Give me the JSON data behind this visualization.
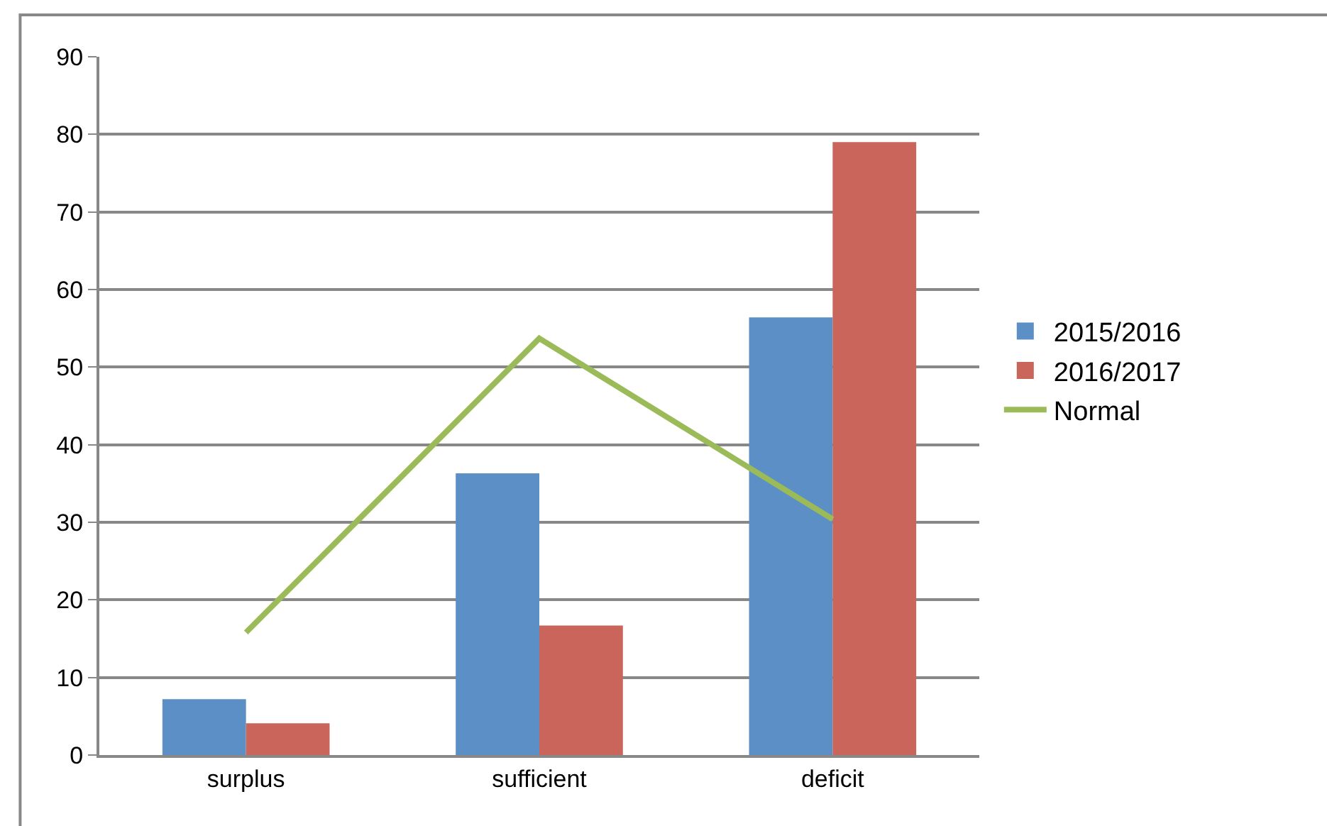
{
  "chart_data": {
    "type": "bar",
    "categories": [
      "surplus",
      "sufficient",
      "deficit"
    ],
    "series": [
      {
        "name": "2015/2016",
        "color": "#5b8fc5",
        "values": [
          7.2,
          36.3,
          56.4
        ]
      },
      {
        "name": "2016/2017",
        "color": "#c9655b",
        "values": [
          4.1,
          16.7,
          79.0
        ]
      },
      {
        "name": "Normal",
        "type": "line",
        "color": "#9bbb59",
        "values": [
          15.8,
          53.7,
          30.4
        ],
        "marker": "none"
      }
    ],
    "ylim": [
      0,
      90
    ],
    "yticks": [
      0,
      10,
      20,
      30,
      40,
      50,
      60,
      70,
      80,
      90
    ],
    "grid": "y",
    "legend": "right"
  }
}
